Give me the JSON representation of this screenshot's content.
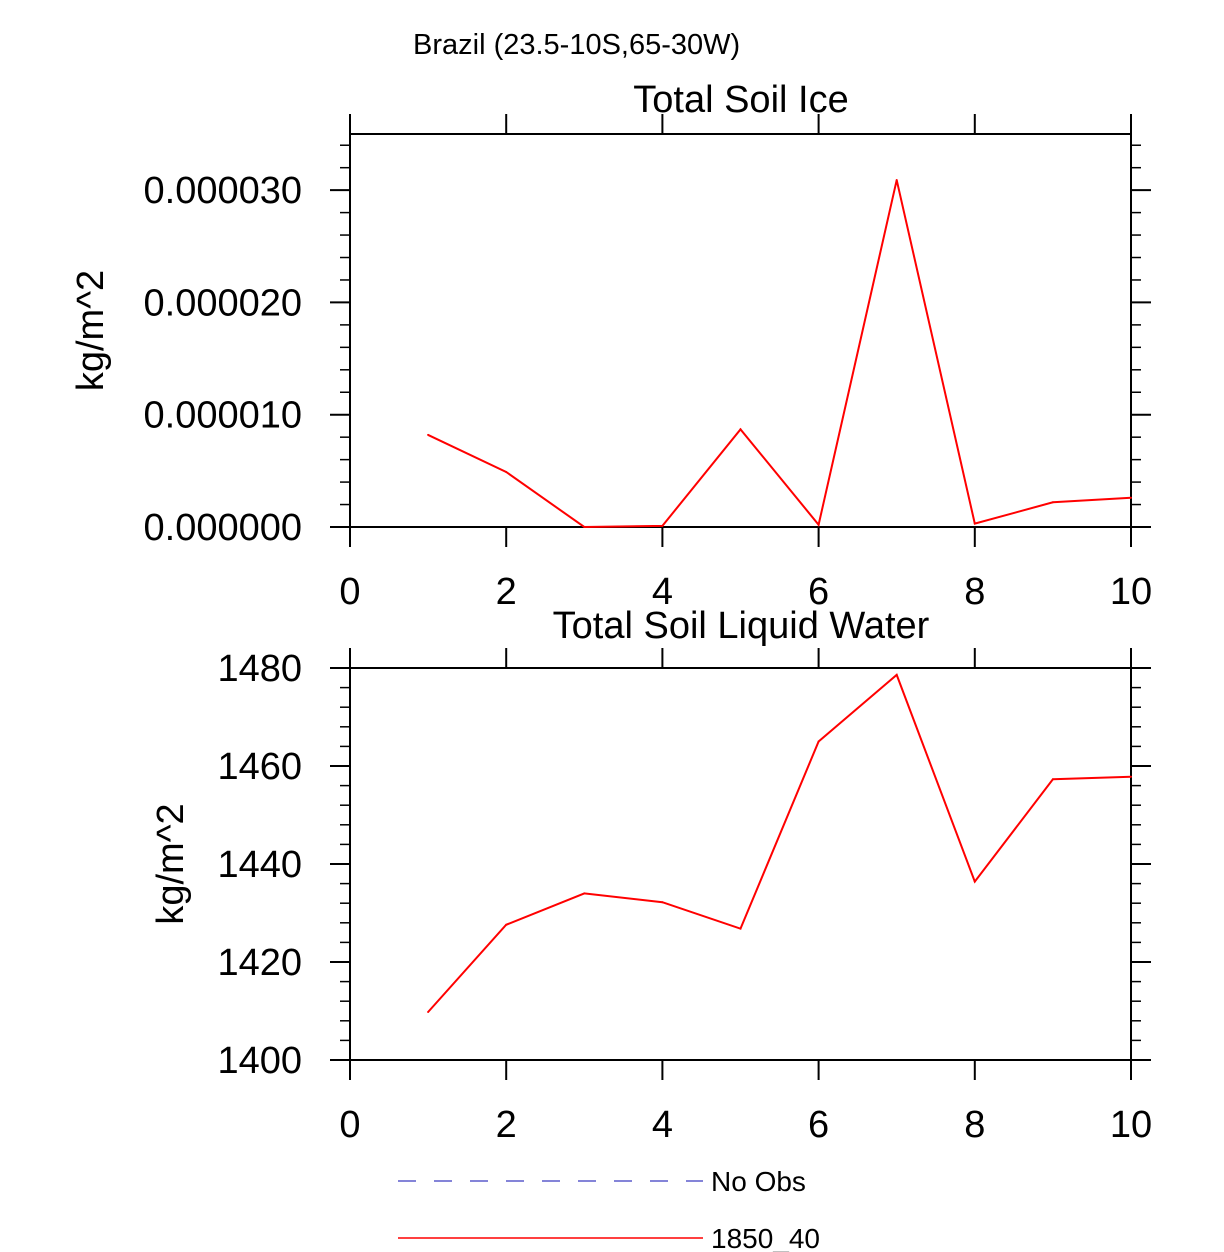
{
  "figure": {
    "suptitle": "Brazil (23.5-10S,65-30W)"
  },
  "chart_data": [
    {
      "type": "line",
      "title": "Total Soil Ice",
      "xlabel": "",
      "ylabel": "kg/m^2",
      "xlim": [
        0,
        10
      ],
      "ylim": [
        0,
        3.5e-05
      ],
      "x_ticks": [
        0,
        2,
        4,
        6,
        8,
        10
      ],
      "x_tick_labels": [
        "0",
        "2",
        "4",
        "6",
        "8",
        "10"
      ],
      "y_ticks": [
        0,
        1e-05,
        2e-05,
        3e-05
      ],
      "y_tick_labels": [
        "0.000000",
        "0.000010",
        "0.000020",
        "0.000030"
      ],
      "grid": false,
      "series": [
        {
          "name": "1850_40",
          "color": "#ff0000",
          "x": [
            1,
            2,
            3,
            4,
            5,
            6,
            7,
            8,
            9,
            10
          ],
          "values": [
            8.2e-06,
            4.9e-06,
            0.0,
            1e-07,
            8.7e-06,
            2e-07,
            3.09e-05,
            3e-07,
            2.2e-06,
            2.6e-06
          ]
        }
      ]
    },
    {
      "type": "line",
      "title": "Total Soil Liquid Water",
      "xlabel": "",
      "ylabel": "kg/m^2",
      "xlim": [
        0,
        10
      ],
      "ylim": [
        1400,
        1480
      ],
      "x_ticks": [
        0,
        2,
        4,
        6,
        8,
        10
      ],
      "x_tick_labels": [
        "0",
        "2",
        "4",
        "6",
        "8",
        "10"
      ],
      "y_ticks": [
        1400,
        1420,
        1440,
        1460,
        1480
      ],
      "y_tick_labels": [
        "1400",
        "1420",
        "1440",
        "1460",
        "1480"
      ],
      "grid": false,
      "series": [
        {
          "name": "1850_40",
          "color": "#ff0000",
          "x": [
            1,
            2,
            3,
            4,
            5,
            6,
            7,
            8,
            9,
            10
          ],
          "values": [
            1409.8,
            1427.6,
            1434.0,
            1432.2,
            1426.8,
            1465.0,
            1478.6,
            1436.4,
            1457.3,
            1457.8
          ]
        }
      ]
    }
  ],
  "legend": {
    "placement": "bottom",
    "entries": [
      {
        "label": "No Obs",
        "color": "#5b5bcc",
        "style": "dashed"
      },
      {
        "label": "1850_40",
        "color": "#ff0000",
        "style": "solid"
      }
    ]
  }
}
